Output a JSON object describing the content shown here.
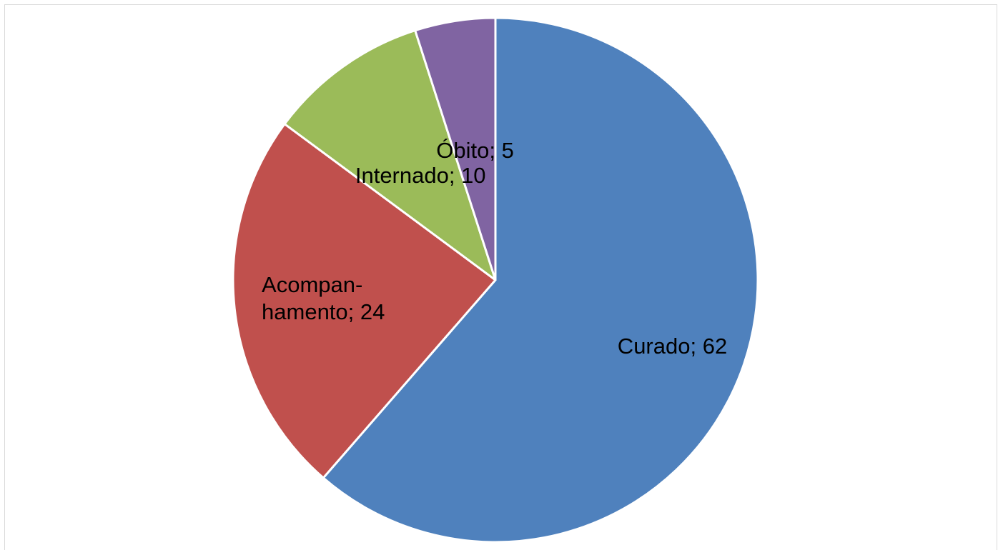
{
  "chart_data": {
    "type": "pie",
    "values": [
      62,
      24,
      10,
      5
    ],
    "value_labels": [
      "Curado; 62",
      "Acompan-\nhamento; 24",
      "Internado; 10",
      "Óbito; 5"
    ],
    "colors": [
      "#4f81bd",
      "#c0504d",
      "#9bbb59",
      "#8064a2"
    ]
  }
}
